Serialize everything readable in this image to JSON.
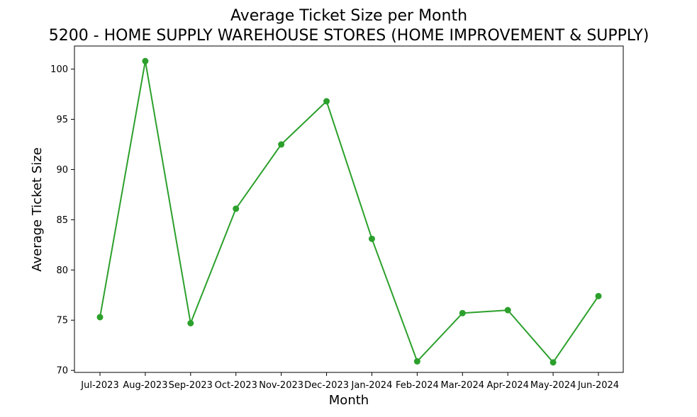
{
  "chart_data": {
    "type": "line",
    "title": "Average Ticket Size per Month",
    "subtitle": "5200 - HOME SUPPLY WAREHOUSE STORES (HOME IMPROVEMENT & SUPPLY)",
    "xlabel": "Month",
    "ylabel": "Average Ticket Size",
    "categories": [
      "Jul-2023",
      "Aug-2023",
      "Sep-2023",
      "Oct-2023",
      "Nov-2023",
      "Dec-2023",
      "Jan-2024",
      "Feb-2024",
      "Mar-2024",
      "Apr-2024",
      "May-2024",
      "Jun-2024"
    ],
    "series": [
      {
        "values": [
          75.3,
          100.8,
          74.7,
          86.1,
          92.5,
          96.8,
          83.1,
          70.9,
          75.7,
          76.0,
          70.8,
          77.4
        ],
        "color": "#2ca02c"
      }
    ],
    "ylim": [
      69.8,
      102.3
    ],
    "yticks": [
      70,
      75,
      80,
      85,
      90,
      95,
      100
    ],
    "grid": false,
    "legend": "none"
  }
}
